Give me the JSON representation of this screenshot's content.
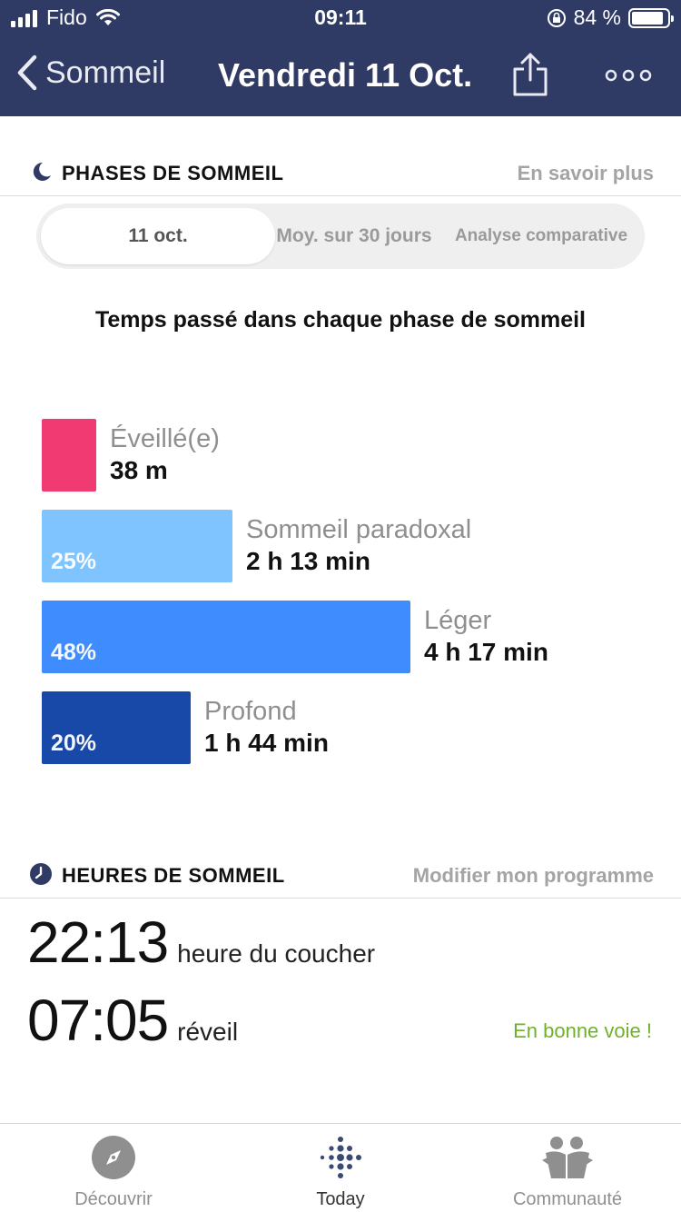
{
  "status_bar": {
    "carrier": "Fido",
    "time": "09:11",
    "battery": "84 %"
  },
  "nav": {
    "back_label": "Sommeil",
    "title": "Vendredi 11 Oct."
  },
  "phases_section": {
    "title": "PHASES DE SOMMEIL",
    "link": "En savoir plus",
    "segments": [
      "11 oct.",
      "Moy. sur 30 jours",
      "Analyse comparative"
    ],
    "selected_segment": "11 oct.",
    "chart_title": "Temps passé dans chaque phase de sommeil"
  },
  "chart_data": {
    "type": "bar",
    "title": "Temps passé dans chaque phase de sommeil",
    "categories": [
      "Éveillé(e)",
      "Sommeil paradoxal",
      "Léger",
      "Profond"
    ],
    "durations": [
      "38 m",
      "2 h 13 min",
      "4 h 17 min",
      "1 h 44 min"
    ],
    "minutes": [
      38,
      133,
      257,
      104
    ],
    "percent_labels": [
      "",
      "25%",
      "48%",
      "20%"
    ],
    "colors": [
      "#f23a72",
      "#7fc3ff",
      "#3f8cff",
      "#1848a8"
    ]
  },
  "hours_section": {
    "title": "HEURES DE SOMMEIL",
    "link": "Modifier mon programme",
    "bedtime": "22:13",
    "bedtime_label": "heure du coucher",
    "wake": "07:05",
    "wake_label": "réveil",
    "status": "En bonne voie !"
  },
  "tabbar": {
    "tabs": [
      {
        "label": "Découvrir",
        "icon": "compass-icon"
      },
      {
        "label": "Today",
        "icon": "fitbit-dots-icon"
      },
      {
        "label": "Communauté",
        "icon": "community-icon"
      }
    ],
    "active": "Today"
  }
}
